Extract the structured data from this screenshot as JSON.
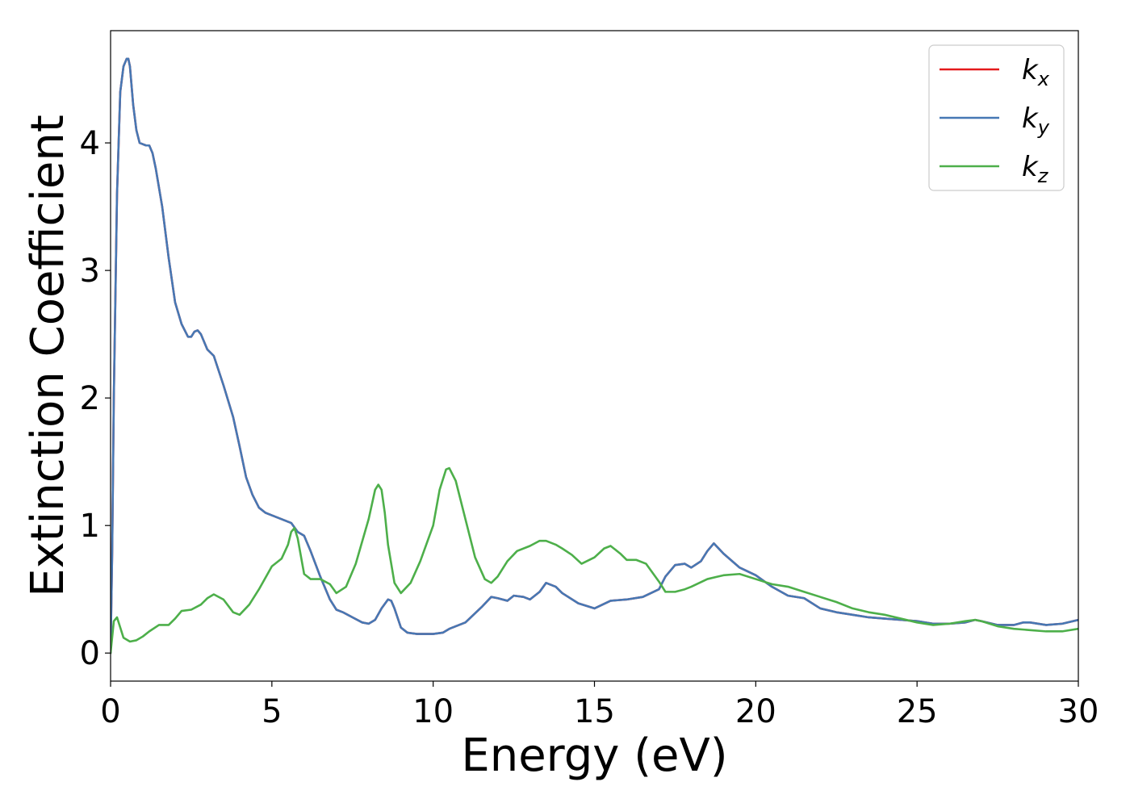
{
  "chart_data": {
    "type": "line",
    "title": "",
    "xlabel": "Energy (eV)",
    "ylabel": "Extinction Coefficient",
    "xlim": [
      0,
      30
    ],
    "ylim": [
      -0.22,
      4.88
    ],
    "xticks": [
      0,
      5,
      10,
      15,
      20,
      25,
      30
    ],
    "yticks": [
      0,
      1,
      2,
      3,
      4
    ],
    "grid": false,
    "legend_position": "top-right",
    "series": [
      {
        "name": "k_x",
        "label_base": "k",
        "label_sub": "x",
        "color": "#e41a1c",
        "x": [
          0,
          0.05,
          0.1,
          0.2,
          0.3,
          0.4,
          0.5,
          0.55,
          0.6,
          0.7,
          0.8,
          0.9,
          1.0,
          1.1,
          1.2,
          1.3,
          1.4,
          1.5,
          1.6,
          1.8,
          2.0,
          2.2,
          2.4,
          2.5,
          2.6,
          2.7,
          2.8,
          3.0,
          3.2,
          3.5,
          3.8,
          4.0,
          4.2,
          4.4,
          4.6,
          4.8,
          5.0,
          5.3,
          5.6,
          5.8,
          6.0,
          6.2,
          6.5,
          6.8,
          7.0,
          7.2,
          7.5,
          7.8,
          8.0,
          8.2,
          8.4,
          8.6,
          8.7,
          8.8,
          9.0,
          9.2,
          9.5,
          10.0,
          10.3,
          10.5,
          11.0,
          11.5,
          11.8,
          12.0,
          12.3,
          12.5,
          12.8,
          13.0,
          13.3,
          13.5,
          13.8,
          14.0,
          14.5,
          15.0,
          15.5,
          16.0,
          16.5,
          17.0,
          17.2,
          17.5,
          17.8,
          18.0,
          18.3,
          18.5,
          18.7,
          19.0,
          19.5,
          20.0,
          20.5,
          21.0,
          21.5,
          22.0,
          22.5,
          23.0,
          23.5,
          24.0,
          24.5,
          25.0,
          25.5,
          26.0,
          26.5,
          26.8,
          27.0,
          27.5,
          28.0,
          28.3,
          28.5,
          29.0,
          29.5,
          30.0
        ],
        "y": [
          0.0,
          0.8,
          2.0,
          3.6,
          4.4,
          4.6,
          4.66,
          4.66,
          4.6,
          4.3,
          4.1,
          4.0,
          3.99,
          3.98,
          3.98,
          3.92,
          3.8,
          3.65,
          3.5,
          3.1,
          2.75,
          2.58,
          2.48,
          2.48,
          2.52,
          2.53,
          2.5,
          2.38,
          2.33,
          2.1,
          1.85,
          1.62,
          1.38,
          1.24,
          1.14,
          1.1,
          1.08,
          1.05,
          1.02,
          0.95,
          0.92,
          0.8,
          0.6,
          0.42,
          0.34,
          0.32,
          0.28,
          0.24,
          0.23,
          0.26,
          0.35,
          0.42,
          0.41,
          0.35,
          0.2,
          0.16,
          0.15,
          0.15,
          0.16,
          0.19,
          0.24,
          0.36,
          0.44,
          0.43,
          0.41,
          0.45,
          0.44,
          0.42,
          0.48,
          0.55,
          0.52,
          0.47,
          0.39,
          0.35,
          0.41,
          0.42,
          0.44,
          0.5,
          0.6,
          0.69,
          0.7,
          0.67,
          0.72,
          0.8,
          0.86,
          0.78,
          0.67,
          0.61,
          0.52,
          0.45,
          0.43,
          0.35,
          0.32,
          0.3,
          0.28,
          0.27,
          0.26,
          0.25,
          0.23,
          0.23,
          0.24,
          0.26,
          0.25,
          0.22,
          0.22,
          0.24,
          0.24,
          0.22,
          0.23,
          0.26
        ]
      },
      {
        "name": "k_y",
        "label_base": "k",
        "label_sub": "y",
        "color": "#4678b4",
        "x": [
          0,
          0.05,
          0.1,
          0.2,
          0.3,
          0.4,
          0.5,
          0.55,
          0.6,
          0.7,
          0.8,
          0.9,
          1.0,
          1.1,
          1.2,
          1.3,
          1.4,
          1.5,
          1.6,
          1.8,
          2.0,
          2.2,
          2.4,
          2.5,
          2.6,
          2.7,
          2.8,
          3.0,
          3.2,
          3.5,
          3.8,
          4.0,
          4.2,
          4.4,
          4.6,
          4.8,
          5.0,
          5.3,
          5.6,
          5.8,
          6.0,
          6.2,
          6.5,
          6.8,
          7.0,
          7.2,
          7.5,
          7.8,
          8.0,
          8.2,
          8.4,
          8.6,
          8.7,
          8.8,
          9.0,
          9.2,
          9.5,
          10.0,
          10.3,
          10.5,
          11.0,
          11.5,
          11.8,
          12.0,
          12.3,
          12.5,
          12.8,
          13.0,
          13.3,
          13.5,
          13.8,
          14.0,
          14.5,
          15.0,
          15.5,
          16.0,
          16.5,
          17.0,
          17.2,
          17.5,
          17.8,
          18.0,
          18.3,
          18.5,
          18.7,
          19.0,
          19.5,
          20.0,
          20.5,
          21.0,
          21.5,
          22.0,
          22.5,
          23.0,
          23.5,
          24.0,
          24.5,
          25.0,
          25.5,
          26.0,
          26.5,
          26.8,
          27.0,
          27.5,
          28.0,
          28.3,
          28.5,
          29.0,
          29.5,
          30.0
        ],
        "y": [
          0.0,
          0.8,
          2.0,
          3.6,
          4.4,
          4.6,
          4.66,
          4.66,
          4.6,
          4.3,
          4.1,
          4.0,
          3.99,
          3.98,
          3.98,
          3.92,
          3.8,
          3.65,
          3.5,
          3.1,
          2.75,
          2.58,
          2.48,
          2.48,
          2.52,
          2.53,
          2.5,
          2.38,
          2.33,
          2.1,
          1.85,
          1.62,
          1.38,
          1.24,
          1.14,
          1.1,
          1.08,
          1.05,
          1.02,
          0.95,
          0.92,
          0.8,
          0.6,
          0.42,
          0.34,
          0.32,
          0.28,
          0.24,
          0.23,
          0.26,
          0.35,
          0.42,
          0.41,
          0.35,
          0.2,
          0.16,
          0.15,
          0.15,
          0.16,
          0.19,
          0.24,
          0.36,
          0.44,
          0.43,
          0.41,
          0.45,
          0.44,
          0.42,
          0.48,
          0.55,
          0.52,
          0.47,
          0.39,
          0.35,
          0.41,
          0.42,
          0.44,
          0.5,
          0.6,
          0.69,
          0.7,
          0.67,
          0.72,
          0.8,
          0.86,
          0.78,
          0.67,
          0.61,
          0.52,
          0.45,
          0.43,
          0.35,
          0.32,
          0.3,
          0.28,
          0.27,
          0.26,
          0.25,
          0.23,
          0.23,
          0.24,
          0.26,
          0.25,
          0.22,
          0.22,
          0.24,
          0.24,
          0.22,
          0.23,
          0.26
        ]
      },
      {
        "name": "k_z",
        "label_base": "k",
        "label_sub": "z",
        "color": "#4daf4a",
        "x": [
          0,
          0.1,
          0.2,
          0.3,
          0.4,
          0.6,
          0.8,
          1.0,
          1.2,
          1.5,
          1.8,
          2.0,
          2.2,
          2.5,
          2.8,
          3.0,
          3.2,
          3.5,
          3.8,
          4.0,
          4.3,
          4.6,
          5.0,
          5.3,
          5.5,
          5.6,
          5.7,
          5.8,
          6.0,
          6.2,
          6.5,
          6.8,
          7.0,
          7.3,
          7.6,
          8.0,
          8.2,
          8.3,
          8.4,
          8.5,
          8.6,
          8.8,
          9.0,
          9.3,
          9.6,
          10.0,
          10.2,
          10.4,
          10.5,
          10.7,
          11.0,
          11.3,
          11.6,
          11.8,
          12.0,
          12.3,
          12.6,
          13.0,
          13.3,
          13.5,
          13.8,
          14.0,
          14.3,
          14.6,
          15.0,
          15.3,
          15.5,
          15.8,
          16.0,
          16.3,
          16.6,
          17.0,
          17.2,
          17.5,
          17.8,
          18.0,
          18.5,
          19.0,
          19.5,
          20.0,
          20.5,
          21.0,
          21.5,
          22.0,
          22.5,
          23.0,
          23.5,
          24.0,
          24.5,
          25.0,
          25.5,
          26.0,
          26.5,
          26.8,
          27.0,
          27.5,
          28.0,
          28.5,
          29.0,
          29.5,
          30.0
        ],
        "y": [
          0.0,
          0.25,
          0.28,
          0.2,
          0.12,
          0.09,
          0.1,
          0.13,
          0.17,
          0.22,
          0.22,
          0.27,
          0.33,
          0.34,
          0.38,
          0.43,
          0.46,
          0.42,
          0.32,
          0.3,
          0.38,
          0.5,
          0.68,
          0.74,
          0.85,
          0.95,
          0.98,
          0.9,
          0.62,
          0.58,
          0.58,
          0.54,
          0.47,
          0.52,
          0.7,
          1.05,
          1.28,
          1.32,
          1.28,
          1.1,
          0.85,
          0.55,
          0.47,
          0.55,
          0.72,
          1.0,
          1.28,
          1.44,
          1.45,
          1.35,
          1.05,
          0.75,
          0.58,
          0.55,
          0.6,
          0.72,
          0.8,
          0.84,
          0.88,
          0.88,
          0.85,
          0.82,
          0.77,
          0.7,
          0.75,
          0.82,
          0.84,
          0.78,
          0.73,
          0.73,
          0.7,
          0.56,
          0.48,
          0.48,
          0.5,
          0.52,
          0.58,
          0.61,
          0.62,
          0.58,
          0.54,
          0.52,
          0.48,
          0.44,
          0.4,
          0.35,
          0.32,
          0.3,
          0.27,
          0.24,
          0.22,
          0.23,
          0.25,
          0.26,
          0.25,
          0.21,
          0.19,
          0.18,
          0.17,
          0.17,
          0.19
        ]
      }
    ]
  }
}
